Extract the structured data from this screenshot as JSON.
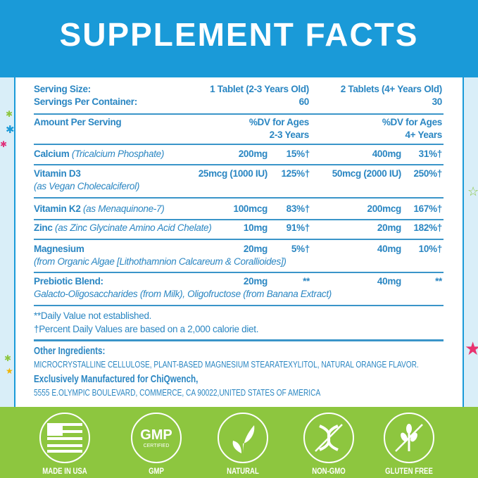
{
  "title": "SUPPLEMENT FACTS",
  "serving": {
    "label": "Serving Size:",
    "col1": "1 Tablet (2-3 Years Old)",
    "col2": "2 Tablets (4+ Years Old)"
  },
  "servings_per": {
    "label": "Servings Per Container:",
    "col1": "60",
    "col2": "30"
  },
  "amount": {
    "label": "Amount Per Serving",
    "col1a": "%DV for Ages",
    "col1b": "2-3 Years",
    "col2a": "%DV for Ages",
    "col2b": "4+ Years"
  },
  "nutrients": [
    {
      "name": "Calcium",
      "source": "(Tricalcium Phosphate)",
      "a1": "200mg",
      "d1": "15%†",
      "a2": "400mg",
      "d2": "31%†"
    },
    {
      "name": "Vitamin D3",
      "source": "(as Vegan Cholecalciferol)",
      "a1": "25mcg (1000 IU)",
      "d1": "125%†",
      "a2": "50mcg (2000 IU)",
      "d2": "250%†"
    },
    {
      "name": "Vitamin K2",
      "source": "(as Menaquinone-7)",
      "a1": "100mcg",
      "d1": "83%†",
      "a2": "200mcg",
      "d2": "167%†"
    },
    {
      "name": "Zinc",
      "source": "(as Zinc Glycinate Amino Acid Chelate)",
      "a1": "10mg",
      "d1": "91%†",
      "a2": "20mg",
      "d2": "182%†"
    },
    {
      "name": "Magnesium",
      "source": "(from Organic Algae [Lithothamnion Calcareum & Corallioides])",
      "a1": "20mg",
      "d1": "5%†",
      "a2": "40mg",
      "d2": "10%†"
    },
    {
      "name": "Prebiotic Blend:",
      "source": "Galacto-Oligosaccharides (from Milk), Oligofructose (from Banana Extract)",
      "a1": "20mg",
      "d1": "**",
      "a2": "40mg",
      "d2": "**"
    }
  ],
  "footnotes": [
    "**Daily Value not established.",
    "†Percent Daily Values are based on a 2,000 calorie diet."
  ],
  "other": {
    "label": "Other Ingredients:",
    "text": "MICROCRYSTALLINE CELLULOSE, PLANT-BASED MAGNESIUM STEARATEXYLITOL, NATURAL ORANGE FLAVOR.",
    "mfr": "Exclusively Manufactured for ChiQwench,",
    "address": "5555 E.OLYMPIC BOULEVARD, COMMERCE, CA 90022,UNITED STATES OF AMERICA"
  },
  "badges": [
    {
      "icon": "us-flag-icon",
      "label": "MADE IN USA"
    },
    {
      "icon": "gmp-seal-icon",
      "label": "GMP",
      "seal_text": "GMP",
      "seal_sub": "CERTIFIED"
    },
    {
      "icon": "leaf-icon",
      "label": "NATURAL"
    },
    {
      "icon": "no-dna-icon",
      "label": "NON-GMO"
    },
    {
      "icon": "no-wheat-icon",
      "label": "GLUTEN FREE"
    }
  ],
  "colors": {
    "header": "#1a9ad8",
    "text": "#2a86c2",
    "green": "#8dc63f"
  }
}
